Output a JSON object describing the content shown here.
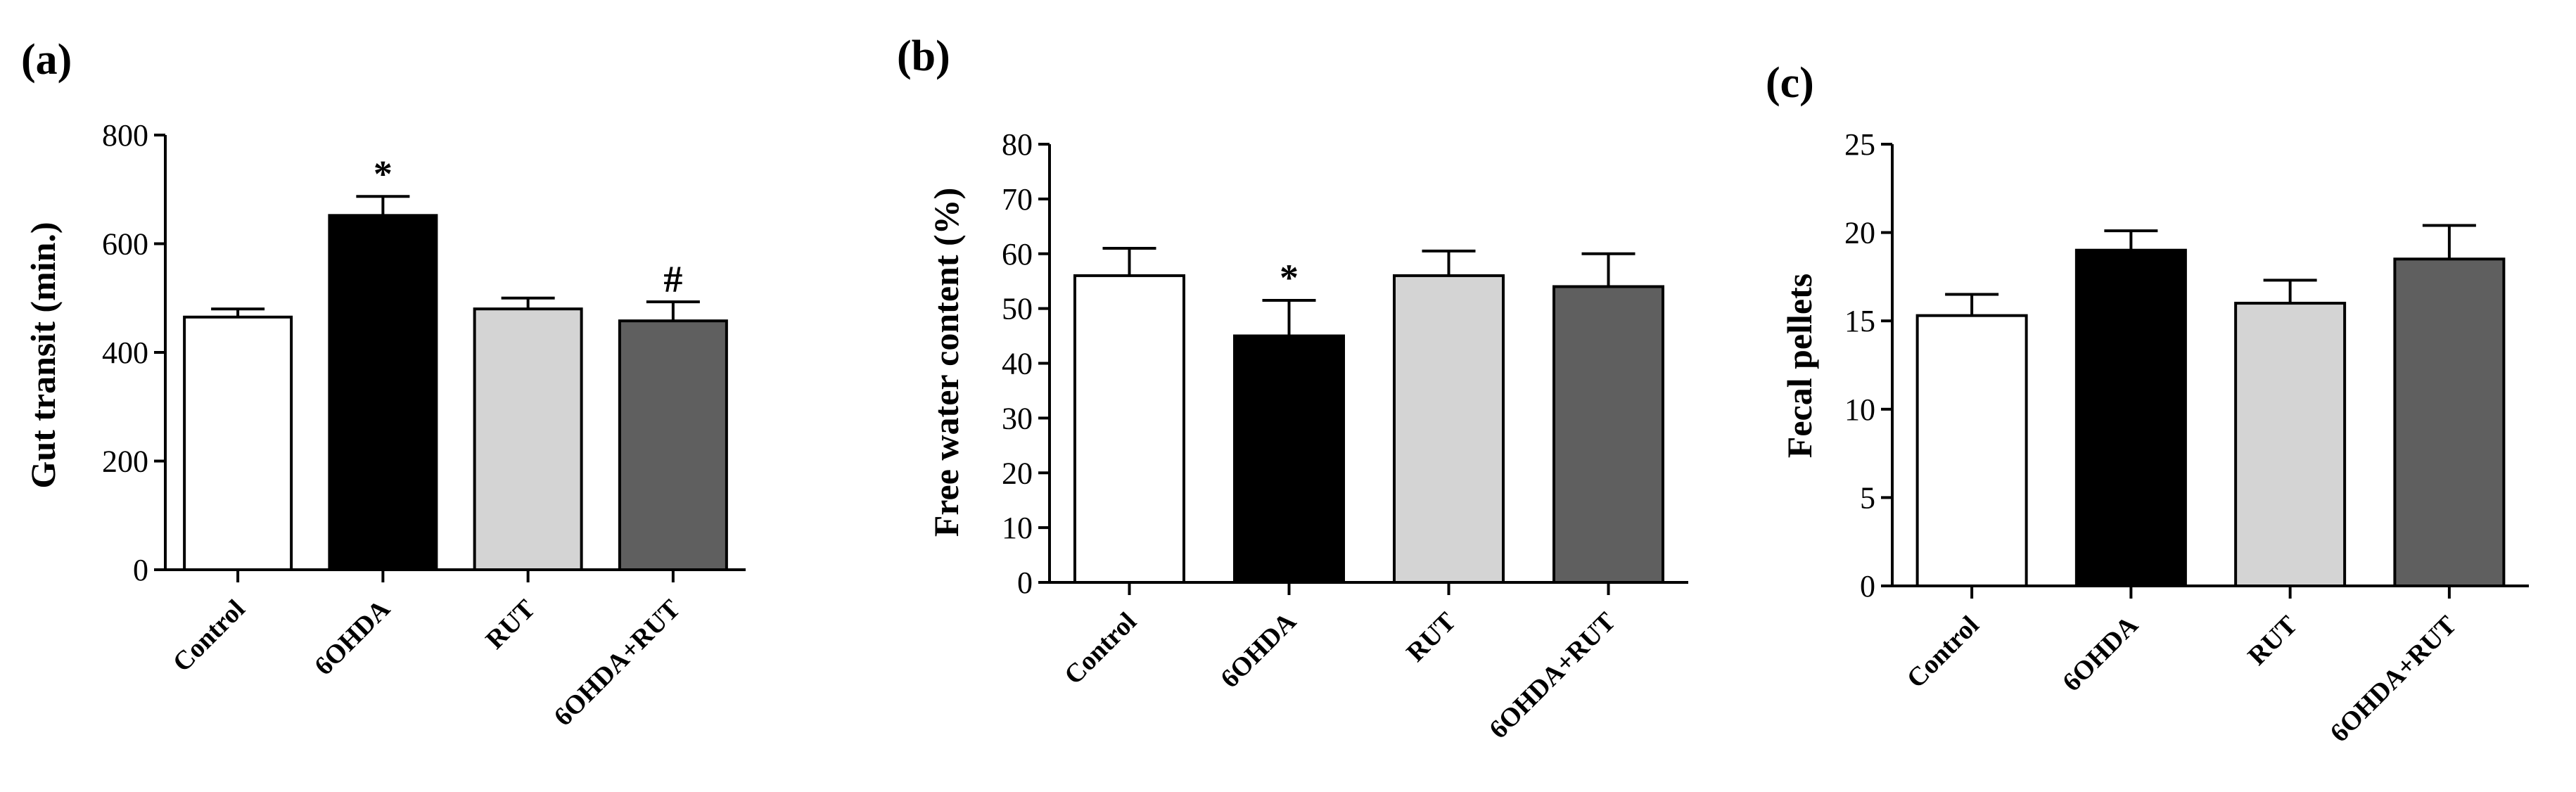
{
  "chart_data": [
    {
      "type": "bar",
      "panel_label": "(a)",
      "categories": [
        "Control",
        "6OHDA",
        "RUT",
        "6OHDA+RUT"
      ],
      "values": [
        465,
        652,
        480,
        458
      ],
      "errors": [
        15,
        35,
        20,
        35
      ],
      "annotations": [
        "",
        "*",
        "",
        "#"
      ],
      "colors": [
        "#ffffff",
        "#000000",
        "#d4d4d4",
        "#5f5f5f"
      ],
      "ylabel": "Gut transit (min.)",
      "ylim": [
        0,
        800
      ],
      "yticks": [
        "0",
        "200",
        "400",
        "600",
        "800"
      ],
      "ytick_values": [
        0,
        200,
        400,
        600,
        800
      ],
      "grid": false
    },
    {
      "type": "bar",
      "panel_label": "(b)",
      "categories": [
        "Control",
        "6OHDA",
        "RUT",
        "6OHDA+RUT"
      ],
      "values": [
        56,
        45,
        56,
        54
      ],
      "errors": [
        5,
        6.5,
        4.5,
        6
      ],
      "annotations": [
        "",
        "*",
        "",
        ""
      ],
      "colors": [
        "#ffffff",
        "#000000",
        "#d4d4d4",
        "#5f5f5f"
      ],
      "ylabel": "Free water content (%)",
      "ylim": [
        0,
        80
      ],
      "yticks": [
        "0",
        "10",
        "20",
        "30",
        "40",
        "50",
        "60",
        "70",
        "80"
      ],
      "ytick_values": [
        0,
        10,
        20,
        30,
        40,
        50,
        60,
        70,
        80
      ],
      "grid": false
    },
    {
      "type": "bar",
      "panel_label": "(c)",
      "categories": [
        "Control",
        "6OHDA",
        "RUT",
        "6OHDA+RUT"
      ],
      "values": [
        15.3,
        19,
        16,
        18.5
      ],
      "errors": [
        1.2,
        1.1,
        1.3,
        1.9
      ],
      "annotations": [
        "",
        "",
        "",
        ""
      ],
      "colors": [
        "#ffffff",
        "#000000",
        "#d4d4d4",
        "#5f5f5f"
      ],
      "ylabel": "Fecal pellets",
      "ylim": [
        0,
        25
      ],
      "yticks": [
        "0",
        "5",
        "10",
        "15",
        "20",
        "25"
      ],
      "ytick_values": [
        0,
        5,
        10,
        15,
        20,
        25
      ],
      "grid": false
    }
  ]
}
